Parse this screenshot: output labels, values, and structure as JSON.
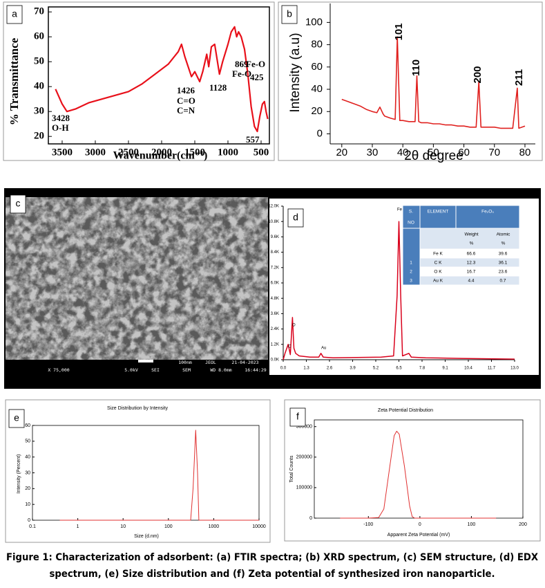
{
  "chart_data": [
    {
      "type": "line",
      "panel_label": "a",
      "xlabel": "Wavenumber(cm⁻¹)",
      "ylabel": "% Transmittance",
      "color": "#e8101a",
      "x": [
        3600,
        3500,
        3428,
        3300,
        3100,
        2900,
        2700,
        2500,
        2300,
        2100,
        1900,
        1750,
        1700,
        1650,
        1550,
        1500,
        1426,
        1380,
        1320,
        1290,
        1250,
        1200,
        1128,
        1080,
        1000,
        950,
        900,
        869,
        840,
        800,
        750,
        700,
        650,
        600,
        557,
        520,
        480,
        450,
        425,
        400
      ],
      "values": [
        39,
        33,
        30,
        31,
        33.5,
        35,
        36.5,
        38,
        41,
        45,
        49,
        54,
        57,
        52,
        44,
        46,
        42,
        46,
        53,
        48,
        56,
        57,
        45,
        50,
        57,
        62,
        64,
        60,
        62,
        60,
        55,
        45,
        32,
        24,
        22,
        28,
        33,
        34,
        30,
        27
      ],
      "xlim": [
        3708,
        375
      ],
      "ylim": [
        17,
        72
      ],
      "xticks": [
        3500,
        3000,
        2500,
        2000,
        1500,
        1000,
        500
      ],
      "yticks": [
        20,
        30,
        40,
        50,
        60,
        70
      ],
      "annotations": [
        "3428",
        "O-H",
        "1426",
        "C=O",
        "C=N",
        "1128",
        "869",
        "Fe-O",
        "Fe-O",
        "425",
        "557"
      ]
    },
    {
      "type": "line",
      "panel_label": "b",
      "xlabel": "2θ degree",
      "ylabel": "Intensity (a.u)",
      "color": "#e0201e",
      "x": [
        20,
        22,
        24,
        26,
        28,
        30,
        31.5,
        32.5,
        33.5,
        34,
        36,
        37.5,
        38.2,
        39,
        40,
        42,
        44,
        44.6,
        45.2,
        46,
        48,
        50,
        52,
        54,
        56,
        58,
        60,
        62,
        64,
        64.9,
        65.6,
        66,
        68,
        70,
        72,
        74,
        76,
        77.5,
        78,
        80
      ],
      "values": [
        31,
        29,
        27,
        25,
        22,
        20,
        19,
        24,
        18,
        16,
        14,
        13,
        87,
        12,
        12,
        11,
        11,
        52,
        11,
        10,
        10,
        9,
        9,
        8,
        8,
        7,
        7,
        6,
        6,
        47,
        6,
        6,
        6,
        6,
        5,
        5,
        5,
        41,
        5,
        7
      ],
      "xlim": [
        16.2,
        83.4
      ],
      "ylim": [
        -9,
        117
      ],
      "xticks": [
        20,
        30,
        40,
        50,
        60,
        70,
        80
      ],
      "yticks": [
        0,
        20,
        40,
        60,
        80,
        100
      ],
      "annotations": [
        "101",
        "110",
        "200",
        "211"
      ]
    },
    {
      "type": "line",
      "panel_label": "d",
      "color": "#d9001b",
      "x": [
        0,
        0.1,
        0.28,
        0.4,
        0.52,
        0.6,
        0.7,
        0.9,
        1.5,
        2.0,
        2.12,
        2.25,
        2.8,
        5.5,
        6.2,
        6.4,
        6.5,
        6.6,
        6.7,
        7.06,
        7.2,
        8,
        10,
        13
      ],
      "values": [
        0,
        0.5,
        1.2,
        0.4,
        3.3,
        0.9,
        0.5,
        0.3,
        0.2,
        0.2,
        0.5,
        0.2,
        0.15,
        0.2,
        0.3,
        5,
        10.8,
        5,
        0.3,
        0.5,
        0.2,
        0.15,
        0.1,
        0.05
      ],
      "xlim": [
        0,
        13
      ],
      "ylim": [
        0,
        12
      ],
      "xticks": [
        {
          "value": 0,
          "label": "0.0"
        },
        1.3,
        2.6,
        3.9,
        5.2,
        6.5,
        7.8,
        9.1,
        10.4,
        11.7,
        {
          "value": 13,
          "label": "13.0"
        }
      ],
      "yticks": [
        {
          "value": 0,
          "label": "0.0K"
        },
        {
          "value": 1.2,
          "label": "1.2K"
        },
        {
          "value": 2.4,
          "label": "2.4K"
        },
        {
          "value": 3.6,
          "label": "3.6K"
        },
        {
          "value": 4.8,
          "label": "4.8K"
        },
        {
          "value": 6,
          "label": "6.0K"
        },
        {
          "value": 7.2,
          "label": "7.2K"
        },
        {
          "value": 8.4,
          "label": "8.4K"
        },
        {
          "value": 9.6,
          "label": "9.6K"
        },
        {
          "value": 10.8,
          "label": "10.8K"
        },
        {
          "value": 12,
          "label": "12.0K"
        }
      ],
      "annotations": [
        "C",
        "O",
        "Au",
        "Fe"
      ],
      "table": {
        "sno_header": [
          "S.",
          "NO"
        ],
        "element_header": "ELEMENT",
        "compound": "Fe₂O₃",
        "subheaders": [
          [
            "Weight",
            "%"
          ],
          [
            "Atomic",
            "%"
          ]
        ],
        "rows": [
          {
            "element": "Fe K",
            "weight": 66.6,
            "atomic": 39.6
          },
          {
            "no": 1,
            "element": "C K",
            "weight": 12.3,
            "atomic": 36.1
          },
          {
            "no": 2,
            "element": "O K",
            "weight": 16.7,
            "atomic": 23.6
          },
          {
            "no": 3,
            "element": "Au K",
            "weight": 4.4,
            "atomic": 0.7
          }
        ]
      }
    },
    {
      "type": "line",
      "panel_label": "e",
      "title": "Size Distribution by Intensity",
      "xlabel": "Size (d.nm)",
      "ylabel": "Intensity (Percent)",
      "color": "#e03030",
      "xscale": "log",
      "x": [
        0.4,
        1,
        10,
        100,
        310,
        350,
        400,
        440,
        470,
        1000,
        10000
      ],
      "values": [
        0,
        0,
        0,
        0,
        0,
        20,
        57,
        30,
        0,
        0,
        0
      ],
      "xlim": [
        0.1,
        10000
      ],
      "ylim": [
        0,
        60
      ],
      "xticks": [
        0.1,
        1,
        10,
        100,
        1000,
        10000
      ],
      "yticks": [
        0,
        10,
        20,
        30,
        40,
        50,
        60
      ]
    },
    {
      "type": "line",
      "panel_label": "f",
      "title": "Zeta Potential Distribution",
      "xlabel": "Apparent Zeta Potential (mV)",
      "ylabel": "Total Counts",
      "color": "#e03030",
      "x": [
        -155,
        -100,
        -80,
        -70,
        -60,
        -50,
        -45,
        -40,
        -30,
        -20,
        -15,
        -10,
        0,
        100,
        148
      ],
      "values": [
        0,
        0,
        2000,
        30000,
        150000,
        270000,
        285000,
        275000,
        170000,
        40000,
        5000,
        0,
        0,
        0,
        0
      ],
      "xlim": [
        -205,
        200
      ],
      "ylim": [
        0,
        322000
      ],
      "xticks": [
        -100,
        0,
        100,
        200
      ],
      "yticks": [
        0,
        100000,
        200000,
        300000
      ]
    }
  ],
  "sem_image": {
    "panel_label": "c",
    "info": [
      "X 75,000",
      "5.0kV",
      "SEI",
      "SEM",
      "WD 8.0mm",
      "16:44:29",
      "100nm",
      "JEOL",
      "21-04-2023"
    ]
  },
  "caption": [
    "Figure 1: Characterization of adsorbent: (a) FTIR spectra; (b) XRD spectrum, (c) SEM structure, (d) EDX",
    "spectrum, (e) Size distribution and (f) Zeta potential of synthesized iron nanoparticle."
  ]
}
